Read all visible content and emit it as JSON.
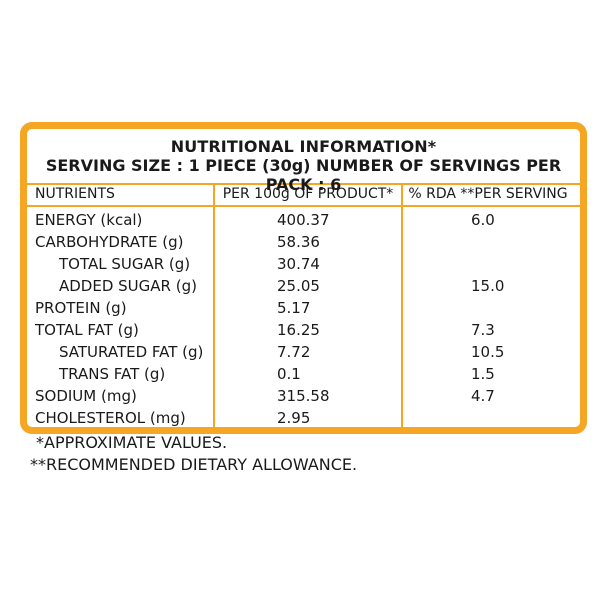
{
  "label": {
    "title": "NUTRITIONAL INFORMATION*",
    "serving": "SERVING SIZE : 1 PIECE (30g)  NUMBER OF SERVINGS PER PACK : 6",
    "columns": {
      "nutrients": "NUTRIENTS",
      "per100g": "PER 100g OF PRODUCT*",
      "rda": "% RDA **PER SERVING"
    },
    "rows": [
      {
        "name": "ENERGY (kcal)",
        "per100g": "400.37",
        "rda": "6.0",
        "indent": false
      },
      {
        "name": "CARBOHYDRATE (g)",
        "per100g": "58.36",
        "rda": "",
        "indent": false
      },
      {
        "name": "TOTAL SUGAR (g)",
        "per100g": "30.74",
        "rda": "",
        "indent": true
      },
      {
        "name": "ADDED SUGAR (g)",
        "per100g": "25.05",
        "rda": "15.0",
        "indent": true
      },
      {
        "name": "PROTEIN (g)",
        "per100g": "5.17",
        "rda": "",
        "indent": false
      },
      {
        "name": "TOTAL FAT (g)",
        "per100g": "16.25",
        "rda": "7.3",
        "indent": false
      },
      {
        "name": "SATURATED FAT (g)",
        "per100g": "7.72",
        "rda": "10.5",
        "indent": true
      },
      {
        "name": "TRANS FAT (g)",
        "per100g": "0.1",
        "rda": "1.5",
        "indent": true
      },
      {
        "name": "SODIUM (mg)",
        "per100g": "315.58",
        "rda": "4.7",
        "indent": false
      },
      {
        "name": "CHOLESTEROL (mg)",
        "per100g": "2.95",
        "rda": "",
        "indent": false
      }
    ]
  },
  "footnotes": {
    "approx": "*APPROXIMATE VALUES.",
    "rda": "**RECOMMENDED DIETARY ALLOWANCE."
  },
  "colors": {
    "border": "#f5a623",
    "text": "#1a1a1a"
  }
}
